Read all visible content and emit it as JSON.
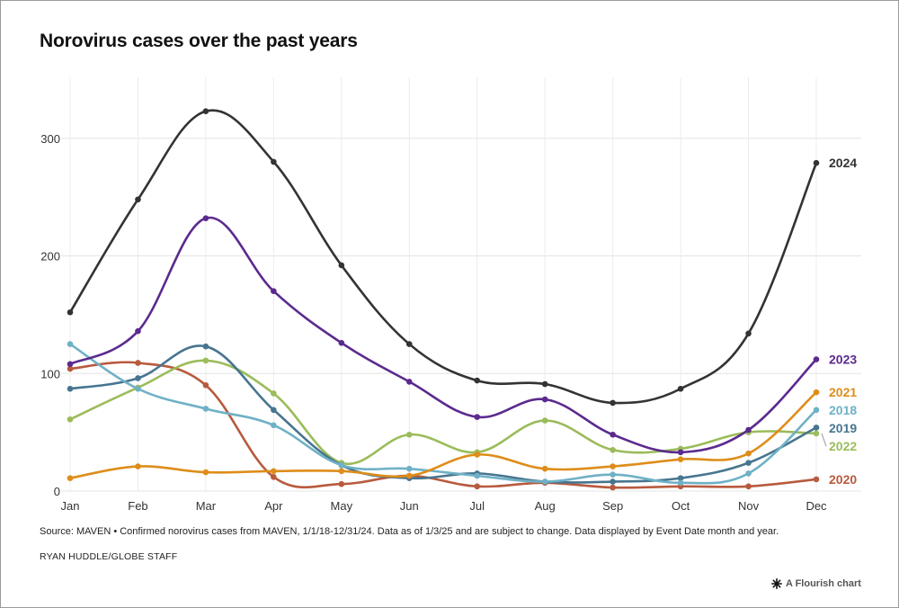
{
  "chart_data": {
    "type": "line",
    "title": "Norovirus cases over the past years",
    "xlabel": "",
    "ylabel": "",
    "categories": [
      "Jan",
      "Feb",
      "Mar",
      "Apr",
      "May",
      "Jun",
      "Jul",
      "Aug",
      "Sep",
      "Oct",
      "Nov",
      "Dec"
    ],
    "ylim": [
      0,
      350
    ],
    "yticks": [
      0,
      100,
      200,
      300
    ],
    "grid": true,
    "legend": "direct labels at right end of lines",
    "series": [
      {
        "name": "2024",
        "color": "#333333",
        "values": [
          152,
          248,
          323,
          280,
          192,
          125,
          94,
          91,
          75,
          87,
          134,
          279
        ]
      },
      {
        "name": "2023",
        "color": "#5b2a8e",
        "values": [
          108,
          136,
          232,
          170,
          126,
          93,
          63,
          78,
          48,
          33,
          52,
          112
        ]
      },
      {
        "name": "2021",
        "color": "#de8d1a",
        "values": [
          11,
          21,
          16,
          17,
          17,
          13,
          31,
          19,
          21,
          27,
          32,
          84
        ]
      },
      {
        "name": "2018",
        "color": "#6fb1c6",
        "values": [
          125,
          87,
          70,
          56,
          22,
          19,
          13,
          8,
          14,
          7,
          15,
          69
        ]
      },
      {
        "name": "2019",
        "color": "#47758f",
        "values": [
          87,
          96,
          123,
          69,
          22,
          11,
          15,
          8,
          8,
          11,
          24,
          54
        ]
      },
      {
        "name": "2022",
        "color": "#9bbc5a",
        "values": [
          61,
          88,
          111,
          83,
          24,
          48,
          33,
          60,
          35,
          36,
          50,
          49
        ]
      },
      {
        "name": "2020",
        "color": "#b85a3e",
        "values": [
          104,
          109,
          90,
          12,
          6,
          13,
          4,
          7,
          3,
          4,
          4,
          10
        ]
      }
    ]
  },
  "source": "Source: MAVEN • Confirmed norovirus cases from MAVEN, 1/1/18-12/31/24. Data as of 1/3/25 and are subject to change. Data displayed by Event Date month and year.",
  "credit": "RYAN HUDDLE/GLOBE STAFF",
  "branding": {
    "label": "A Flourish chart",
    "icon": "flourish-asterisk-icon"
  }
}
